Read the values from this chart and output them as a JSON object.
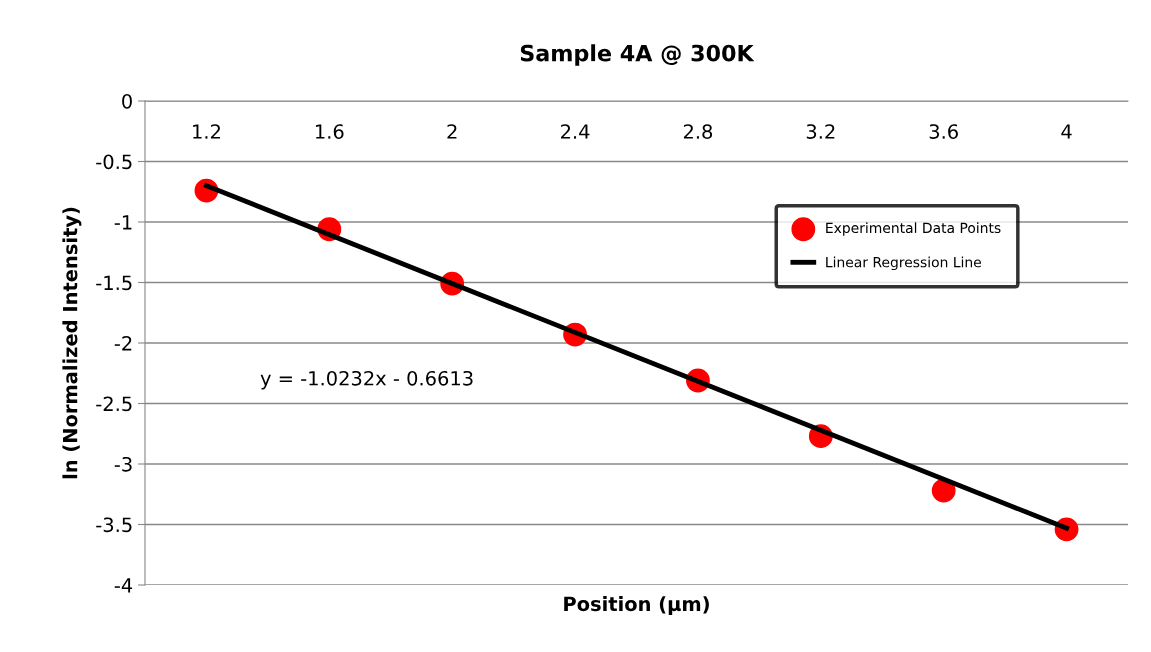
{
  "chart_data": {
    "type": "scatter",
    "title": "Sample 4A @ 300K",
    "xlabel": "Position (µm)",
    "ylabel": "ln (Normalized Intensity)",
    "categories": [
      "1.2",
      "1.6",
      "2",
      "2.4",
      "2.8",
      "3.2",
      "3.6",
      "4"
    ],
    "series": [
      {
        "name": "Experimental Data Points",
        "color": "#ff0000",
        "marker": "circle",
        "values": [
          -0.74,
          -1.06,
          -1.51,
          -1.93,
          -2.31,
          -2.77,
          -3.22,
          -3.54
        ]
      },
      {
        "name": "Linear Regression Line",
        "type": "line",
        "color": "#000000",
        "marker": "none",
        "line_style": "solid",
        "x": [
          "1.2",
          "4"
        ],
        "values": [
          -0.7,
          -3.53
        ]
      }
    ],
    "ylim": [
      -4,
      0
    ],
    "yticks": [
      -4,
      -3.5,
      -3,
      -2.5,
      -2,
      -1.5,
      -1,
      -0.5,
      0
    ],
    "grid": "y",
    "legend": "right",
    "annotations": [
      "y = -1.0232x - 0.6613"
    ]
  }
}
